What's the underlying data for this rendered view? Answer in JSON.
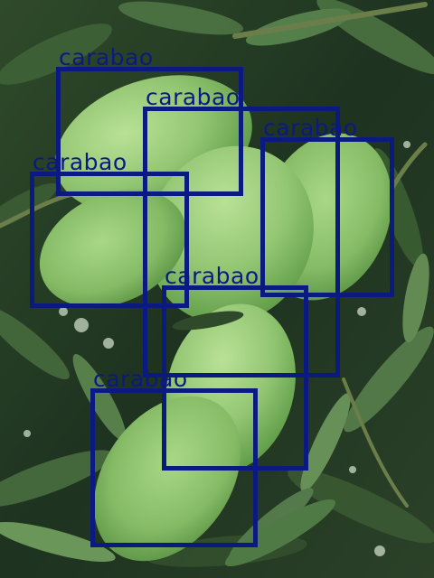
{
  "image": {
    "subject": "green-mangoes-on-tree",
    "colors": {
      "box": "#0b1a80",
      "mango": "#9fcf7e",
      "mango_shadow": "#5f9c47",
      "leaf_dark": "#1f3a1e",
      "leaf_light": "#6f9a5e"
    }
  },
  "detections": [
    {
      "label": "carabao"
    },
    {
      "label": "carabao"
    },
    {
      "label": "carabao"
    },
    {
      "label": "carabao"
    },
    {
      "label": "carabao"
    },
    {
      "label": "carabao"
    }
  ]
}
